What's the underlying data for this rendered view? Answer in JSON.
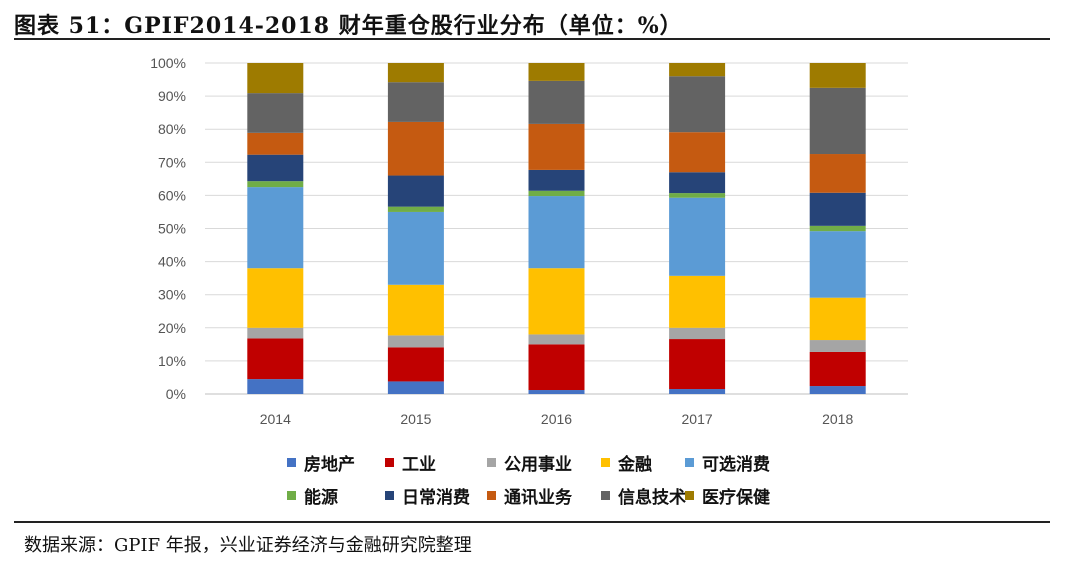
{
  "header": {
    "title": "图表 51：GPIF2014-2018 财年重仓股行业分布（单位：%）"
  },
  "footer": {
    "source": "数据来源：GPIF 年报，兴业证券经济与金融研究院整理"
  },
  "chart_data": {
    "type": "bar",
    "stacked": true,
    "title": "",
    "xlabel": "",
    "ylabel": "",
    "ylim": [
      0,
      100
    ],
    "y_ticks": [
      "0%",
      "10%",
      "20%",
      "30%",
      "40%",
      "50%",
      "60%",
      "70%",
      "80%",
      "90%",
      "100%"
    ],
    "grid": true,
    "legend_position": "bottom",
    "categories": [
      "2014",
      "2015",
      "2016",
      "2017",
      "2018"
    ],
    "series": [
      {
        "name": "房地产",
        "color": "#4472C4",
        "values": [
          4.5,
          3.8,
          1.2,
          1.5,
          2.4
        ]
      },
      {
        "name": "工业",
        "color": "#C00000",
        "values": [
          12.3,
          10.3,
          13.8,
          15.1,
          10.3
        ]
      },
      {
        "name": "公用事业",
        "color": "#A5A5A5",
        "values": [
          3.2,
          3.6,
          3.0,
          3.4,
          3.6
        ]
      },
      {
        "name": "金融",
        "color": "#FFC000",
        "values": [
          18.0,
          15.3,
          20.0,
          15.7,
          12.8
        ]
      },
      {
        "name": "可选消费",
        "color": "#5B9BD5",
        "values": [
          24.5,
          22.0,
          21.8,
          23.6,
          20.1
        ]
      },
      {
        "name": "能源",
        "color": "#70AD47",
        "values": [
          1.8,
          1.6,
          1.6,
          1.4,
          1.6
        ]
      },
      {
        "name": "日常消费",
        "color": "#264478",
        "values": [
          8.0,
          9.4,
          6.3,
          6.3,
          10.0
        ]
      },
      {
        "name": "通讯业务",
        "color": "#C55A11",
        "values": [
          6.6,
          16.2,
          13.9,
          12.1,
          11.7
        ]
      },
      {
        "name": "信息技术",
        "color": "#636363",
        "values": [
          12.0,
          12.0,
          13.0,
          16.9,
          20.0
        ]
      },
      {
        "name": "医疗保健",
        "color": "#9E7B00",
        "values": [
          9.1,
          5.8,
          5.4,
          4.0,
          7.5
        ]
      }
    ]
  }
}
